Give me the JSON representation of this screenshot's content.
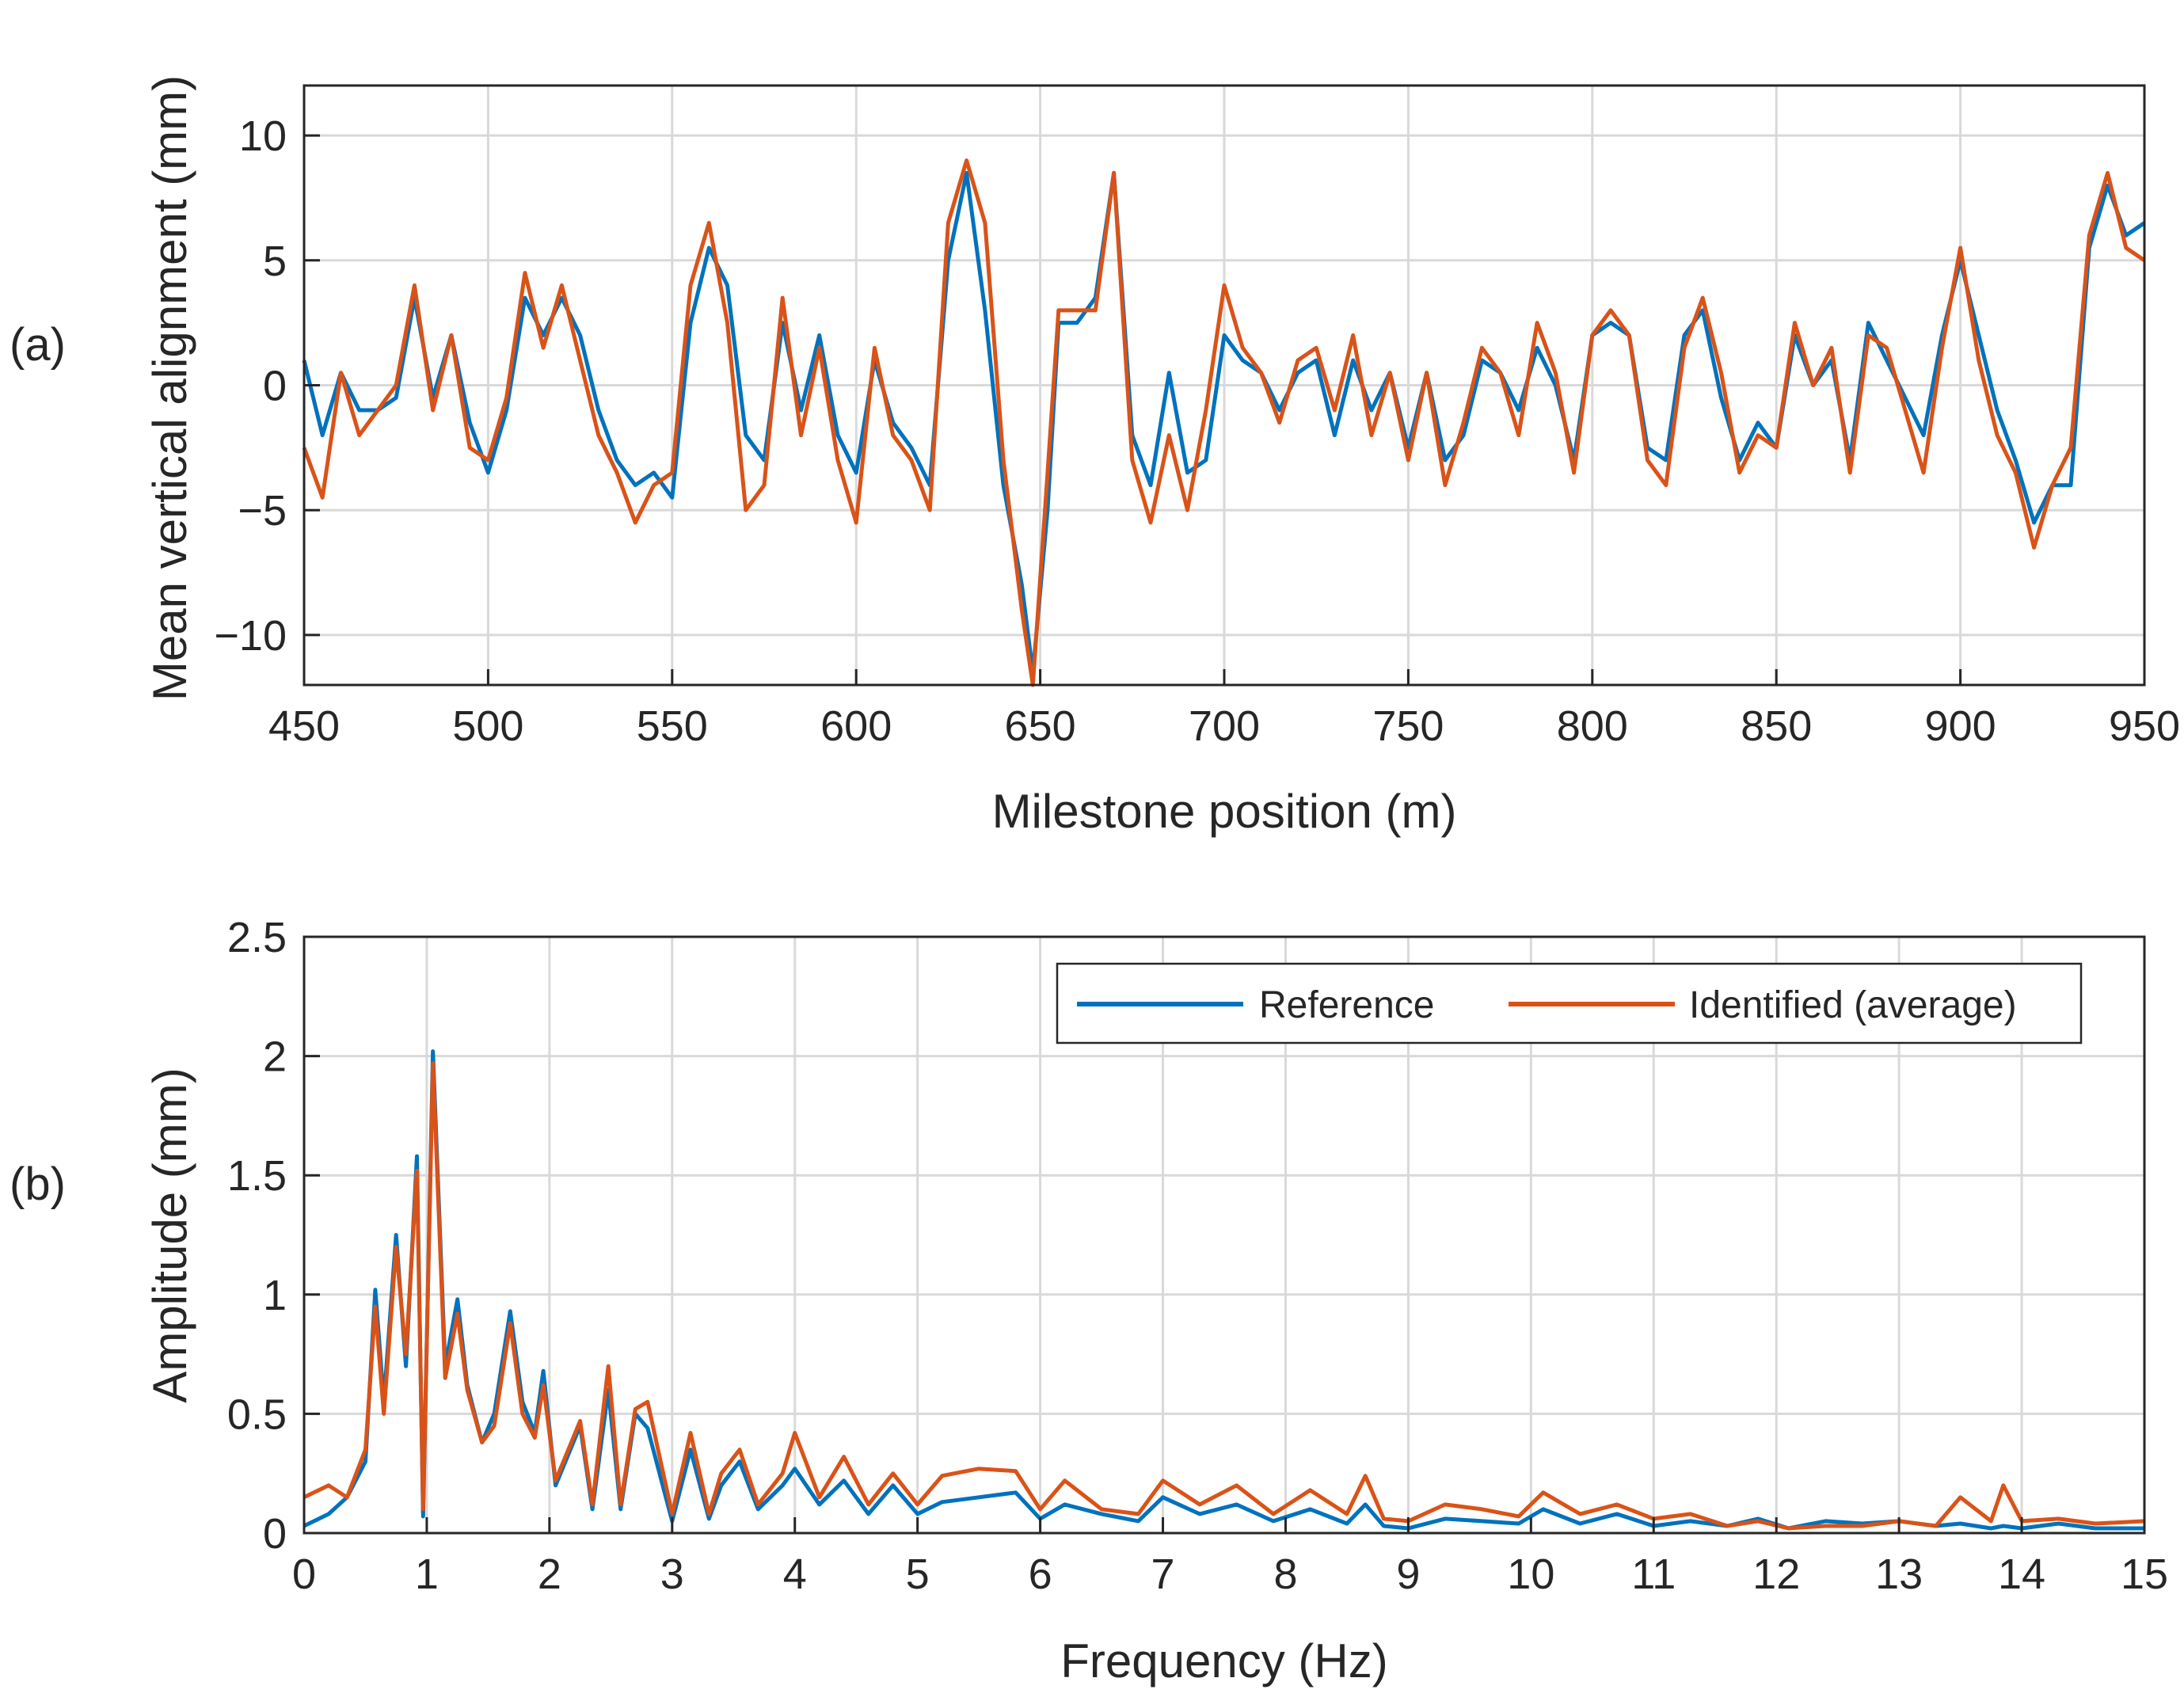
{
  "colors": {
    "reference": "#0072BD",
    "identified": "#D95319"
  },
  "chart_data": [
    {
      "type": "line",
      "panel_label": "(a)",
      "xlabel": "Milestone position (m)",
      "ylabel": "Mean vertical alignment (mm)",
      "xlim": [
        450,
        950
      ],
      "ylim": [
        -12,
        12
      ],
      "xticks": [
        450,
        500,
        550,
        600,
        650,
        700,
        750,
        800,
        850,
        900,
        950
      ],
      "yticks": [
        10,
        5,
        0,
        -5,
        -10
      ],
      "ytick_labels": [
        "10",
        "5",
        "0",
        "−5",
        "−10"
      ],
      "grid": true,
      "x": [
        450,
        455,
        460,
        465,
        470,
        475,
        480,
        485,
        490,
        495,
        500,
        505,
        510,
        515,
        520,
        525,
        530,
        535,
        540,
        545,
        550,
        555,
        560,
        565,
        570,
        575,
        580,
        585,
        590,
        595,
        600,
        605,
        610,
        615,
        620,
        625,
        630,
        635,
        640,
        645,
        648,
        652,
        655,
        660,
        665,
        670,
        675,
        680,
        685,
        690,
        695,
        700,
        705,
        710,
        715,
        720,
        725,
        730,
        735,
        740,
        745,
        750,
        755,
        760,
        765,
        770,
        775,
        780,
        785,
        790,
        795,
        800,
        805,
        810,
        815,
        820,
        825,
        830,
        835,
        840,
        845,
        850,
        855,
        860,
        865,
        870,
        875,
        880,
        885,
        890,
        895,
        900,
        905,
        910,
        915,
        920,
        925,
        930,
        935,
        940,
        945,
        950
      ],
      "series": [
        {
          "name": "Reference",
          "values": [
            1.0,
            -2.0,
            0.5,
            -1.0,
            -1.0,
            -0.5,
            3.5,
            -0.5,
            2.0,
            -1.5,
            -3.5,
            -1.0,
            3.5,
            2.0,
            3.5,
            2.0,
            -1.0,
            -3.0,
            -4.0,
            -3.5,
            -4.5,
            2.5,
            5.5,
            4.0,
            -2.0,
            -3.0,
            2.5,
            -1.0,
            2.0,
            -2.0,
            -3.5,
            1.0,
            -1.5,
            -2.5,
            -4.0,
            5.0,
            8.5,
            3.0,
            -4.0,
            -8.0,
            -11.5,
            -5.0,
            2.5,
            2.5,
            3.5,
            8.5,
            -2.0,
            -4.0,
            0.5,
            -3.5,
            -3.0,
            2.0,
            1.0,
            0.5,
            -1.0,
            0.5,
            1.0,
            -2.0,
            1.0,
            -1.0,
            0.5,
            -2.5,
            0.5,
            -3.0,
            -2.0,
            1.0,
            0.5,
            -1.0,
            1.5,
            0.0,
            -3.0,
            2.0,
            2.5,
            2.0,
            -2.5,
            -3.0,
            2.0,
            3.0,
            -0.5,
            -3.0,
            -1.5,
            -2.5,
            2.0,
            0.0,
            1.0,
            -3.0,
            2.5,
            1.0,
            -0.5,
            -2.0,
            2.0,
            5.0,
            2.0,
            -1.0,
            -3.0,
            -5.5,
            -4.0,
            -4.0,
            5.5,
            8.0,
            6.0,
            6.5
          ]
        },
        {
          "name": "Identified (average)",
          "values": [
            -2.5,
            -4.5,
            0.5,
            -2.0,
            -1.0,
            0.0,
            4.0,
            -1.0,
            2.0,
            -2.5,
            -3.0,
            -0.5,
            4.5,
            1.5,
            4.0,
            1.0,
            -2.0,
            -3.5,
            -5.5,
            -4.0,
            -3.5,
            4.0,
            6.5,
            2.5,
            -5.0,
            -4.0,
            3.5,
            -2.0,
            1.5,
            -3.0,
            -5.5,
            1.5,
            -2.0,
            -3.0,
            -5.0,
            6.5,
            9.0,
            6.5,
            -3.0,
            -9.0,
            -12.0,
            -3.5,
            3.0,
            3.0,
            3.0,
            8.5,
            -3.0,
            -5.5,
            -2.0,
            -5.0,
            -1.0,
            4.0,
            1.5,
            0.5,
            -1.5,
            1.0,
            1.5,
            -1.0,
            2.0,
            -2.0,
            0.5,
            -3.0,
            0.5,
            -4.0,
            -1.5,
            1.5,
            0.5,
            -2.0,
            2.5,
            0.5,
            -3.5,
            2.0,
            3.0,
            2.0,
            -3.0,
            -4.0,
            1.5,
            3.5,
            0.5,
            -3.5,
            -2.0,
            -2.5,
            2.5,
            0.0,
            1.5,
            -3.5,
            2.0,
            1.5,
            -1.0,
            -3.5,
            1.5,
            5.5,
            1.0,
            -2.0,
            -3.5,
            -6.5,
            -4.0,
            -2.5,
            6.0,
            8.5,
            5.5,
            5.0
          ]
        }
      ]
    },
    {
      "type": "line",
      "panel_label": "(b)",
      "xlabel": "Frequency (Hz)",
      "ylabel": "Amplitude (mm)",
      "xlim": [
        0,
        15
      ],
      "ylim": [
        0,
        2.5
      ],
      "xticks": [
        0,
        1,
        2,
        3,
        4,
        5,
        6,
        7,
        8,
        9,
        10,
        11,
        12,
        13,
        14,
        15
      ],
      "yticks": [
        2.5,
        2,
        1.5,
        1,
        0.5,
        0
      ],
      "ytick_labels": [
        "2.5",
        "2",
        "1.5",
        "1",
        "0.5",
        "0"
      ],
      "grid": true,
      "legend_location": "top-right",
      "x": [
        0,
        0.2,
        0.35,
        0.5,
        0.58,
        0.65,
        0.75,
        0.83,
        0.92,
        0.97,
        1.05,
        1.15,
        1.25,
        1.33,
        1.45,
        1.55,
        1.68,
        1.78,
        1.88,
        1.95,
        2.05,
        2.25,
        2.35,
        2.48,
        2.58,
        2.7,
        2.8,
        3.0,
        3.15,
        3.3,
        3.4,
        3.55,
        3.7,
        3.9,
        4.0,
        4.2,
        4.4,
        4.6,
        4.8,
        5.0,
        5.2,
        5.5,
        5.8,
        6.0,
        6.2,
        6.5,
        6.8,
        7.0,
        7.3,
        7.6,
        7.9,
        8.2,
        8.5,
        8.65,
        8.8,
        9.0,
        9.3,
        9.6,
        9.9,
        10.1,
        10.4,
        10.7,
        11.0,
        11.3,
        11.6,
        11.85,
        12.1,
        12.4,
        12.7,
        13.0,
        13.3,
        13.5,
        13.75,
        13.85,
        14.0,
        14.3,
        14.6,
        15.0
      ],
      "series": [
        {
          "name": "Reference",
          "values": [
            0.03,
            0.08,
            0.15,
            0.3,
            1.02,
            0.55,
            1.25,
            0.7,
            1.58,
            0.07,
            2.02,
            0.7,
            0.98,
            0.62,
            0.38,
            0.5,
            0.93,
            0.55,
            0.42,
            0.68,
            0.2,
            0.45,
            0.1,
            0.6,
            0.1,
            0.5,
            0.44,
            0.05,
            0.35,
            0.06,
            0.2,
            0.3,
            0.1,
            0.2,
            0.27,
            0.12,
            0.22,
            0.08,
            0.2,
            0.08,
            0.13,
            0.15,
            0.17,
            0.06,
            0.12,
            0.08,
            0.05,
            0.15,
            0.08,
            0.12,
            0.05,
            0.1,
            0.04,
            0.12,
            0.03,
            0.02,
            0.06,
            0.05,
            0.04,
            0.1,
            0.04,
            0.08,
            0.03,
            0.05,
            0.03,
            0.06,
            0.02,
            0.05,
            0.04,
            0.05,
            0.03,
            0.04,
            0.02,
            0.03,
            0.02,
            0.04,
            0.02,
            0.02
          ]
        },
        {
          "name": "Identified (average)",
          "values": [
            0.15,
            0.2,
            0.15,
            0.35,
            0.95,
            0.5,
            1.2,
            0.75,
            1.52,
            0.1,
            1.97,
            0.65,
            0.92,
            0.6,
            0.38,
            0.45,
            0.88,
            0.5,
            0.4,
            0.62,
            0.22,
            0.47,
            0.12,
            0.7,
            0.12,
            0.52,
            0.55,
            0.08,
            0.42,
            0.08,
            0.25,
            0.35,
            0.12,
            0.25,
            0.42,
            0.15,
            0.32,
            0.12,
            0.25,
            0.12,
            0.24,
            0.27,
            0.26,
            0.1,
            0.22,
            0.1,
            0.08,
            0.22,
            0.12,
            0.2,
            0.08,
            0.18,
            0.08,
            0.24,
            0.06,
            0.05,
            0.12,
            0.1,
            0.07,
            0.17,
            0.08,
            0.12,
            0.06,
            0.08,
            0.03,
            0.05,
            0.02,
            0.03,
            0.03,
            0.05,
            0.03,
            0.15,
            0.05,
            0.2,
            0.05,
            0.06,
            0.04,
            0.05
          ]
        }
      ]
    }
  ]
}
